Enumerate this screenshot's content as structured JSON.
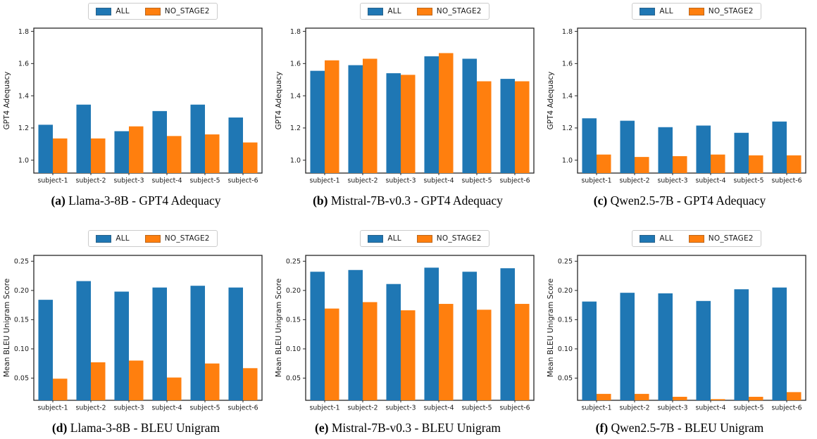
{
  "legend": {
    "items": [
      {
        "label": "ALL",
        "color": "#1f77b4"
      },
      {
        "label": "NO_STAGE2",
        "color": "#ff7f0e"
      }
    ]
  },
  "chart_data": [
    {
      "id": "a",
      "type": "bar",
      "caption_letter": "(a)",
      "caption": " Llama-3-8B - GPT4 Adequacy",
      "ylabel": "GPT4 Adequacy",
      "categories": [
        "subject-1",
        "subject-2",
        "subject-3",
        "subject-4",
        "subject-5",
        "subject-6"
      ],
      "series": [
        {
          "name": "ALL",
          "color": "#1f77b4",
          "values": [
            1.22,
            1.345,
            1.18,
            1.305,
            1.345,
            1.265
          ]
        },
        {
          "name": "NO_STAGE2",
          "color": "#ff7f0e",
          "values": [
            1.135,
            1.135,
            1.21,
            1.15,
            1.16,
            1.11
          ]
        }
      ],
      "ylim": [
        0.92,
        1.82
      ],
      "yticks": [
        1.0,
        1.2,
        1.4,
        1.6,
        1.8
      ],
      "ytick_labels": [
        "1.0",
        "1.2",
        "1.4",
        "1.6",
        "1.8"
      ],
      "grid": false,
      "legend_position": "top-center"
    },
    {
      "id": "b",
      "type": "bar",
      "caption_letter": "(b)",
      "caption": " Mistral-7B-v0.3 - GPT4 Adequacy",
      "ylabel": "GPT4 Adequacy",
      "categories": [
        "subject-1",
        "subject-2",
        "subject-3",
        "subject-4",
        "subject-5",
        "subject-6"
      ],
      "series": [
        {
          "name": "ALL",
          "color": "#1f77b4",
          "values": [
            1.555,
            1.59,
            1.54,
            1.645,
            1.63,
            1.505
          ]
        },
        {
          "name": "NO_STAGE2",
          "color": "#ff7f0e",
          "values": [
            1.62,
            1.63,
            1.53,
            1.665,
            1.49,
            1.49
          ]
        }
      ],
      "ylim": [
        0.92,
        1.82
      ],
      "yticks": [
        1.0,
        1.2,
        1.4,
        1.6,
        1.8
      ],
      "ytick_labels": [
        "1.0",
        "1.2",
        "1.4",
        "1.6",
        "1.8"
      ],
      "grid": false,
      "legend_position": "top-center"
    },
    {
      "id": "c",
      "type": "bar",
      "caption_letter": "(c)",
      "caption": " Qwen2.5-7B - GPT4 Adequacy",
      "ylabel": "GPT4 Adequacy",
      "categories": [
        "subject-1",
        "subject-2",
        "subject-3",
        "subject-4",
        "subject-5",
        "subject-6"
      ],
      "series": [
        {
          "name": "ALL",
          "color": "#1f77b4",
          "values": [
            1.26,
            1.245,
            1.205,
            1.215,
            1.17,
            1.24
          ]
        },
        {
          "name": "NO_STAGE2",
          "color": "#ff7f0e",
          "values": [
            1.035,
            1.02,
            1.025,
            1.035,
            1.03,
            1.03
          ]
        }
      ],
      "ylim": [
        0.92,
        1.82
      ],
      "yticks": [
        1.0,
        1.2,
        1.4,
        1.6,
        1.8
      ],
      "ytick_labels": [
        "1.0",
        "1.2",
        "1.4",
        "1.6",
        "1.8"
      ],
      "grid": false,
      "legend_position": "top-center"
    },
    {
      "id": "d",
      "type": "bar",
      "caption_letter": "(d)",
      "caption": " Llama-3-8B - BLEU Unigram",
      "ylabel": "Mean BLEU Unigram Score",
      "categories": [
        "subject-1",
        "subject-2",
        "subject-3",
        "subject-4",
        "subject-5",
        "subject-6"
      ],
      "series": [
        {
          "name": "ALL",
          "color": "#1f77b4",
          "values": [
            0.184,
            0.216,
            0.198,
            0.205,
            0.208,
            0.205
          ]
        },
        {
          "name": "NO_STAGE2",
          "color": "#ff7f0e",
          "values": [
            0.049,
            0.077,
            0.08,
            0.051,
            0.075,
            0.067
          ]
        }
      ],
      "ylim": [
        0.012,
        0.26
      ],
      "yticks": [
        0.05,
        0.1,
        0.15,
        0.2,
        0.25
      ],
      "ytick_labels": [
        "0.05",
        "0.10",
        "0.15",
        "0.20",
        "0.25"
      ],
      "grid": false,
      "legend_position": "top-center"
    },
    {
      "id": "e",
      "type": "bar",
      "caption_letter": "(e)",
      "caption": " Mistral-7B-v0.3 - BLEU Unigram",
      "ylabel": "Mean BLEU Unigram Score",
      "categories": [
        "subject-1",
        "subject-2",
        "subject-3",
        "subject-4",
        "subject-5",
        "subject-6"
      ],
      "series": [
        {
          "name": "ALL",
          "color": "#1f77b4",
          "values": [
            0.232,
            0.235,
            0.211,
            0.239,
            0.232,
            0.238
          ]
        },
        {
          "name": "NO_STAGE2",
          "color": "#ff7f0e",
          "values": [
            0.169,
            0.18,
            0.166,
            0.177,
            0.167,
            0.177
          ]
        }
      ],
      "ylim": [
        0.012,
        0.26
      ],
      "yticks": [
        0.05,
        0.1,
        0.15,
        0.2,
        0.25
      ],
      "ytick_labels": [
        "0.05",
        "0.10",
        "0.15",
        "0.20",
        "0.25"
      ],
      "grid": false,
      "legend_position": "top-center"
    },
    {
      "id": "f",
      "type": "bar",
      "caption_letter": "(f)",
      "caption": " Qwen2.5-7B - BLEU Unigram",
      "ylabel": "Mean BLEU Unigram Score",
      "categories": [
        "subject-1",
        "subject-2",
        "subject-3",
        "subject-4",
        "subject-5",
        "subject-6"
      ],
      "series": [
        {
          "name": "ALL",
          "color": "#1f77b4",
          "values": [
            0.181,
            0.196,
            0.195,
            0.182,
            0.202,
            0.205
          ]
        },
        {
          "name": "NO_STAGE2",
          "color": "#ff7f0e",
          "values": [
            0.023,
            0.023,
            0.018,
            0.014,
            0.018,
            0.026
          ]
        }
      ],
      "ylim": [
        0.012,
        0.26
      ],
      "yticks": [
        0.05,
        0.1,
        0.15,
        0.2,
        0.25
      ],
      "ytick_labels": [
        "0.05",
        "0.10",
        "0.15",
        "0.20",
        "0.25"
      ],
      "grid": false,
      "legend_position": "top-center"
    }
  ]
}
